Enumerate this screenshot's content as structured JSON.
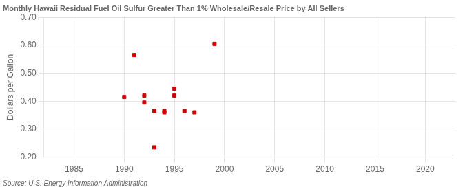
{
  "chart_data": {
    "type": "scatter",
    "title": "Monthly Hawaii Residual Fuel Oil Sulfur Greater Than 1% Wholesale/Resale Price by All Sellers",
    "ylabel": "Dollars per Gallon",
    "annotation": "Source: U.S. Energy Information Administration",
    "x": [
      1990,
      1991,
      1992,
      1992,
      1993,
      1993,
      1994,
      1994,
      1995,
      1995,
      1996,
      1997,
      1999
    ],
    "values": [
      0.415,
      0.565,
      0.395,
      0.42,
      0.365,
      0.235,
      0.36,
      0.365,
      0.42,
      0.445,
      0.365,
      0.36,
      0.605
    ],
    "color": "#cc0000",
    "marker": "square",
    "xlim": [
      1982,
      2023
    ],
    "xticks": [
      1985,
      1990,
      1995,
      2000,
      2005,
      2010,
      2015,
      2020
    ],
    "ylim": [
      0.2,
      0.7
    ],
    "yticks": [
      {
        "value": 0.2,
        "label": "0.20"
      },
      {
        "value": 0.3,
        "label": "0.30"
      },
      {
        "value": 0.4,
        "label": "0.40"
      },
      {
        "value": 0.5,
        "label": "0.50"
      },
      {
        "value": 0.6,
        "label": "0.60"
      },
      {
        "value": 0.7,
        "label": "0.70"
      }
    ],
    "grid": true
  }
}
